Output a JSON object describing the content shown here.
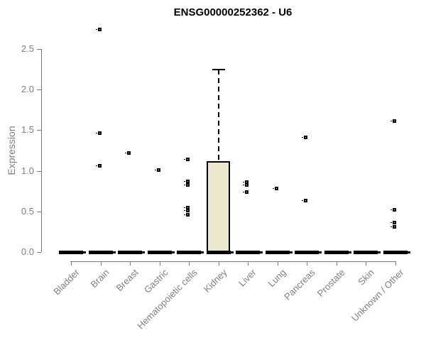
{
  "colors": {
    "box_fill": "#ece6cc",
    "box_border": "#000000",
    "axis": "#7a7a7a",
    "muted_text": "#7f7f7f",
    "title_text": "#000000",
    "marker": "#000000"
  },
  "chart_data": {
    "type": "boxplot",
    "title": "ENSG00000252362 - U6",
    "xlabel": "",
    "ylabel": "Expression",
    "ylim": [
      0,
      2.8
    ],
    "yticks": [
      "0.0",
      "0.5",
      "1.0",
      "1.5",
      "2.0",
      "2.5"
    ],
    "grid": false,
    "legend": false,
    "categories": [
      "Bladder",
      "Brain",
      "Breast",
      "Gastric",
      "Hematopoietic cells",
      "Kidney",
      "Liver",
      "Lung",
      "Pancreas",
      "Prostate",
      "Skin",
      "Unknown / Other"
    ],
    "series": [
      {
        "category": "Bladder",
        "q1": 0,
        "median": 0,
        "q3": 0,
        "whisker_low": 0,
        "whisker_high": 0,
        "outliers": []
      },
      {
        "category": "Brain",
        "q1": 0,
        "median": 0,
        "q3": 0,
        "whisker_low": 0,
        "whisker_high": 0,
        "outliers": [
          2.74,
          1.46,
          1.06
        ]
      },
      {
        "category": "Breast",
        "q1": 0,
        "median": 0,
        "q3": 0,
        "whisker_low": 0,
        "whisker_high": 0,
        "outliers": [
          1.22
        ]
      },
      {
        "category": "Gastric",
        "q1": 0,
        "median": 0,
        "q3": 0,
        "whisker_low": 0,
        "whisker_high": 0,
        "outliers": [
          1.01
        ]
      },
      {
        "category": "Hematopoietic cells",
        "q1": 0,
        "median": 0,
        "q3": 0,
        "whisker_low": 0,
        "whisker_high": 0,
        "outliers": [
          1.14,
          0.87,
          0.83,
          0.55,
          0.51,
          0.46
        ]
      },
      {
        "category": "Kidney",
        "q1": 0,
        "median": 0,
        "q3": 1.12,
        "whisker_low": 0,
        "whisker_high": 2.25,
        "outliers": []
      },
      {
        "category": "Liver",
        "q1": 0,
        "median": 0,
        "q3": 0,
        "whisker_low": 0,
        "whisker_high": 0,
        "outliers": [
          0.86,
          0.83,
          0.74
        ]
      },
      {
        "category": "Lung",
        "q1": 0,
        "median": 0,
        "q3": 0,
        "whisker_low": 0,
        "whisker_high": 0,
        "outliers": [
          0.78
        ]
      },
      {
        "category": "Pancreas",
        "q1": 0,
        "median": 0,
        "q3": 0,
        "whisker_low": 0,
        "whisker_high": 0,
        "outliers": [
          1.41,
          0.63
        ]
      },
      {
        "category": "Prostate",
        "q1": 0,
        "median": 0,
        "q3": 0,
        "whisker_low": 0,
        "whisker_high": 0,
        "outliers": []
      },
      {
        "category": "Skin",
        "q1": 0,
        "median": 0,
        "q3": 0,
        "whisker_low": 0,
        "whisker_high": 0,
        "outliers": []
      },
      {
        "category": "Unknown / Other",
        "q1": 0,
        "median": 0,
        "q3": 0,
        "whisker_low": 0,
        "whisker_high": 0,
        "outliers": [
          1.61,
          0.52,
          0.36,
          0.31
        ]
      }
    ]
  }
}
